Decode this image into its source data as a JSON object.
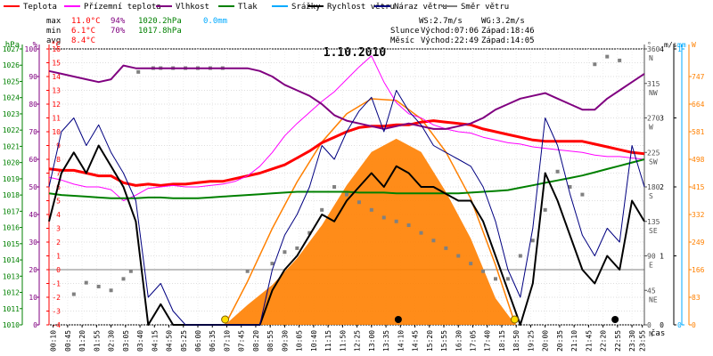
{
  "chart_data": {
    "type": "line",
    "title": "1.10.2010",
    "legend": {
      "placement": "top",
      "items": [
        {
          "name": "Teplota",
          "color": "#ff0000"
        },
        {
          "name": "Přízemní teplota",
          "color": "#ff00ff"
        },
        {
          "name": "Vlhkost",
          "color": "#800080"
        },
        {
          "name": "Tlak",
          "color": "#008000"
        },
        {
          "name": "Srážky",
          "color": "#00aaff"
        },
        {
          "name": "Rychlost větru",
          "color": "#000000"
        },
        {
          "name": "Náraz větru",
          "color": "#000080"
        },
        {
          "name": "Směr větru",
          "color": "#808080"
        }
      ]
    },
    "stats": {
      "max": {
        "label": "max",
        "temp": "11.0°C",
        "hum": "94%",
        "press": "1020.2hPa",
        "rain": "0.0mm"
      },
      "min": {
        "label": "min",
        "temp": "6.1°C",
        "hum": "70%",
        "press": "1017.8hPa"
      },
      "avg": {
        "label": "avg",
        "temp": "8.4°C"
      }
    },
    "info": {
      "ws": "WS:2.7m/s",
      "wg": "WG:3.2m/s",
      "slunce": "Slunce",
      "sun_rise": "Východ:07:06",
      "sun_set": "Západ:18:46",
      "mesic": "Měsíc",
      "moon_rise": "Východ:22:49",
      "moon_set": "Západ:14:05"
    },
    "axes": {
      "hpa": {
        "label": "hPa",
        "color": "#008000",
        "range": [
          1010,
          1027
        ],
        "ticks": [
          "1010",
          "1011",
          "1012",
          "1013",
          "1014",
          "1015",
          "1016",
          "1017",
          "1018",
          "1019",
          "1020",
          "1021",
          "1022",
          "1023",
          "1024",
          "1025",
          "1026",
          "1027"
        ]
      },
      "pct": {
        "label": "%",
        "color": "#800080",
        "range": [
          0,
          100
        ],
        "ticks": [
          "0",
          "10",
          "20",
          "30",
          "40",
          "50",
          "60",
          "70",
          "80",
          "90",
          "100"
        ]
      },
      "temp": {
        "label": "°C",
        "color": "#ff0000",
        "range": [
          -4,
          16
        ],
        "ticks": [
          "-4",
          "-3",
          "-2",
          "-1",
          "0",
          "1",
          "2",
          "3",
          "4",
          "5",
          "6",
          "7",
          "8",
          "9",
          "10",
          "11",
          "12",
          "13",
          "14",
          "15",
          "16"
        ]
      },
      "dir": {
        "label": "°",
        "color": "#505050",
        "range": [
          0,
          360
        ],
        "ticks": [
          {
            "v": 0,
            "t": "0",
            "d": "N"
          },
          {
            "v": 45,
            "t": "45",
            "d": "NE"
          },
          {
            "v": 90,
            "t": "90",
            "d": "E"
          },
          {
            "v": 135,
            "t": "135",
            "d": "SE"
          },
          {
            "v": 180,
            "t": "180",
            "d": "S"
          },
          {
            "v": 225,
            "t": "225",
            "d": "SW"
          },
          {
            "v": 270,
            "t": "270",
            "d": "W"
          },
          {
            "v": 315,
            "t": "315",
            "d": "NW"
          },
          {
            "v": 360,
            "t": "360",
            "d": "N"
          }
        ]
      },
      "ms": {
        "label": "m/s",
        "color": "#000000",
        "range": [
          0,
          4
        ],
        "ticks": [
          "0",
          "1",
          "2",
          "3",
          "4"
        ]
      },
      "mm": {
        "label": "mm",
        "color": "#00aaff",
        "range": [
          0,
          1
        ],
        "ticks": [
          "0",
          "1"
        ]
      },
      "w": {
        "label": "W",
        "color": "#ff8000",
        "range": [
          0,
          830
        ],
        "ticks": [
          "0",
          "83",
          "166",
          "249",
          "332",
          "415",
          "498",
          "581",
          "664",
          "747"
        ]
      },
      "time": {
        "label": "čas",
        "ticks": [
          "00:10",
          "00:45",
          "01:20",
          "01:55",
          "02:30",
          "03:05",
          "03:40",
          "04:15",
          "04:50",
          "05:25",
          "06:00",
          "06:35",
          "07:10",
          "07:45",
          "08:20",
          "08:55",
          "09:30",
          "10:05",
          "10:40",
          "11:15",
          "11:50",
          "12:25",
          "13:00",
          "13:35",
          "14:10",
          "14:45",
          "15:20",
          "15:55",
          "16:30",
          "17:05",
          "17:40",
          "18:15",
          "18:50",
          "19:25",
          "20:00",
          "20:35",
          "21:10",
          "21:45",
          "22:20",
          "22:55",
          "23:30",
          "23:55"
        ]
      }
    },
    "series": [
      {
        "name": "Teplota",
        "axis": "temp",
        "color": "#ff0000",
        "width": 3,
        "x": [
          0,
          0.5,
          1,
          1.5,
          2,
          2.5,
          3,
          3.5,
          4,
          4.5,
          5,
          5.5,
          6,
          6.5,
          7,
          7.5,
          8,
          8.5,
          9,
          9.5,
          10,
          10.5,
          11,
          11.5,
          12,
          12.5,
          13,
          13.5,
          14,
          14.5,
          15,
          15.5,
          16,
          16.5,
          17,
          17.5,
          18,
          18.5,
          19,
          19.5,
          20,
          20.5,
          21,
          21.5,
          22,
          22.5,
          23,
          23.5,
          24
        ],
        "y": [
          7.3,
          7.2,
          7.2,
          7.0,
          6.8,
          6.8,
          6.3,
          6.1,
          6.2,
          6.1,
          6.2,
          6.2,
          6.3,
          6.4,
          6.4,
          6.6,
          6.8,
          7.0,
          7.3,
          7.6,
          8.1,
          8.6,
          9.2,
          9.6,
          10.0,
          10.3,
          10.4,
          10.4,
          10.5,
          10.5,
          10.7,
          10.8,
          10.7,
          10.6,
          10.5,
          10.2,
          10.0,
          9.8,
          9.6,
          9.4,
          9.3,
          9.3,
          9.3,
          9.3,
          9.1,
          8.9,
          8.7,
          8.5,
          8.4
        ]
      },
      {
        "name": "Přízemní teplota",
        "axis": "temp",
        "color": "#ff00ff",
        "width": 1,
        "x": [
          0,
          0.5,
          1,
          1.5,
          2,
          2.5,
          3,
          3.5,
          4,
          4.5,
          5,
          5.5,
          6,
          6.5,
          7,
          7.5,
          8,
          8.5,
          9,
          9.5,
          10,
          10.5,
          11,
          11.5,
          12,
          12.5,
          13,
          13.5,
          14,
          14.5,
          15,
          15.5,
          16,
          16.5,
          17,
          17.5,
          18,
          18.5,
          19,
          19.5,
          20,
          20.5,
          21,
          21.5,
          22,
          22.5,
          23,
          23.5,
          24
        ],
        "y": [
          6.7,
          6.5,
          6.2,
          6.0,
          6.0,
          5.8,
          5.0,
          5.4,
          5.9,
          6.0,
          6.1,
          6.0,
          6.0,
          6.1,
          6.2,
          6.4,
          6.8,
          7.5,
          8.5,
          9.7,
          10.6,
          11.4,
          12.2,
          12.9,
          13.8,
          14.7,
          15.5,
          13.6,
          12.1,
          11.3,
          11.0,
          10.5,
          10.2,
          10.0,
          9.9,
          9.6,
          9.4,
          9.2,
          9.1,
          8.9,
          8.8,
          8.7,
          8.6,
          8.5,
          8.3,
          8.2,
          8.2,
          8.1,
          8.0
        ]
      },
      {
        "name": "Vlhkost",
        "axis": "pct",
        "color": "#800080",
        "width": 2,
        "x": [
          0,
          0.5,
          1,
          1.5,
          2,
          2.5,
          3,
          3.5,
          4,
          4.5,
          5,
          5.5,
          6,
          6.5,
          7,
          7.5,
          8,
          8.5,
          9,
          9.5,
          10,
          10.5,
          11,
          11.5,
          12,
          12.5,
          13,
          13.5,
          14,
          14.5,
          15,
          15.5,
          16,
          16.5,
          17,
          17.5,
          18,
          18.5,
          19,
          19.5,
          20,
          20.5,
          21,
          21.5,
          22,
          22.5,
          23,
          23.5,
          24
        ],
        "y": [
          92,
          91,
          90,
          89,
          88,
          89,
          94,
          93,
          93,
          93,
          93,
          93,
          93,
          93,
          93,
          93,
          93,
          92,
          90,
          87,
          85,
          83,
          80,
          76,
          74,
          73,
          72,
          71,
          72,
          73,
          72,
          71,
          71,
          72,
          73,
          75,
          78,
          80,
          82,
          83,
          84,
          82,
          80,
          78,
          78,
          82,
          85,
          88,
          91
        ]
      },
      {
        "name": "Tlak",
        "axis": "hpa",
        "color": "#008000",
        "width": 2,
        "x": [
          0,
          0.5,
          1,
          1.5,
          2,
          2.5,
          3,
          3.5,
          4,
          4.5,
          5,
          5.5,
          6,
          6.5,
          7,
          7.5,
          8,
          8.5,
          9,
          9.5,
          10,
          10.5,
          11,
          11.5,
          12,
          12.5,
          13,
          13.5,
          14,
          14.5,
          15,
          15.5,
          16,
          16.5,
          17,
          17.5,
          18,
          18.5,
          19,
          19.5,
          20,
          20.5,
          21,
          21.5,
          22,
          22.5,
          23,
          23.5,
          24
        ],
        "y": [
          1018.1,
          1018.0,
          1017.95,
          1017.9,
          1017.85,
          1017.8,
          1017.8,
          1017.8,
          1017.85,
          1017.85,
          1017.8,
          1017.8,
          1017.8,
          1017.85,
          1017.9,
          1017.95,
          1018.0,
          1018.05,
          1018.1,
          1018.15,
          1018.2,
          1018.2,
          1018.2,
          1018.2,
          1018.2,
          1018.15,
          1018.15,
          1018.15,
          1018.1,
          1018.1,
          1018.1,
          1018.1,
          1018.1,
          1018.1,
          1018.15,
          1018.2,
          1018.25,
          1018.3,
          1018.45,
          1018.6,
          1018.75,
          1018.9,
          1019.05,
          1019.2,
          1019.4,
          1019.6,
          1019.8,
          1020.0,
          1020.2
        ]
      },
      {
        "name": "Rychlost větru",
        "axis": "ms",
        "color": "#000000",
        "width": 2,
        "x": [
          0,
          0.5,
          1,
          1.5,
          2,
          2.5,
          3,
          3.5,
          4,
          4.5,
          5,
          5.5,
          6,
          6.5,
          7,
          7.5,
          8,
          8.5,
          9,
          9.5,
          10,
          10.5,
          11,
          11.5,
          12,
          12.5,
          13,
          13.5,
          14,
          14.5,
          15,
          15.5,
          16,
          16.5,
          17,
          17.5,
          18,
          18.5,
          19,
          19.5,
          20,
          20.5,
          21,
          21.5,
          22,
          22.5,
          23,
          23.5,
          24
        ],
        "y": [
          1.5,
          2.2,
          2.5,
          2.2,
          2.6,
          2.3,
          2.0,
          1.5,
          0,
          0.3,
          0,
          0,
          0,
          0,
          0,
          0,
          0,
          0,
          0.5,
          0.8,
          1.0,
          1.3,
          1.6,
          1.5,
          1.8,
          2.0,
          2.2,
          2.0,
          2.3,
          2.2,
          2.0,
          2.0,
          1.9,
          1.8,
          1.8,
          1.5,
          1.0,
          0.5,
          0,
          0.6,
          2.2,
          1.8,
          1.3,
          0.8,
          0.6,
          1.0,
          0.8,
          1.8,
          1.5
        ]
      },
      {
        "name": "Náraz větru",
        "axis": "ms",
        "color": "#000080",
        "width": 1,
        "x": [
          0,
          0.5,
          1,
          1.5,
          2,
          2.5,
          3,
          3.5,
          4,
          4.5,
          5,
          5.5,
          6,
          6.5,
          7,
          7.5,
          8,
          8.5,
          9,
          9.5,
          10,
          10.5,
          11,
          11.5,
          12,
          12.5,
          13,
          13.5,
          14,
          14.5,
          15,
          15.5,
          16,
          16.5,
          17,
          17.5,
          18,
          18.5,
          19,
          19.5,
          20,
          20.5,
          21,
          21.5,
          22,
          22.5,
          23,
          23.5,
          24
        ],
        "y": [
          2.0,
          2.8,
          3.0,
          2.6,
          2.9,
          2.5,
          2.2,
          1.8,
          0.4,
          0.6,
          0.2,
          0,
          0,
          0,
          0,
          0,
          0,
          0,
          0.8,
          1.3,
          1.6,
          2.0,
          2.6,
          2.4,
          2.8,
          3.1,
          3.3,
          2.8,
          3.4,
          3.1,
          2.9,
          2.6,
          2.5,
          2.4,
          2.3,
          2.0,
          1.5,
          0.8,
          0.4,
          1.4,
          3.0,
          2.6,
          1.9,
          1.3,
          1.0,
          1.4,
          1.2,
          2.6,
          2.0
        ]
      }
    ],
    "wind_direction": {
      "name": "Směr větru",
      "axis": "dir",
      "color": "#808080",
      "x": [
        1.0,
        1.5,
        2.0,
        2.5,
        3.0,
        3.3,
        3.6,
        4.2,
        4.5,
        5.0,
        5.5,
        6.0,
        6.5,
        7.0,
        8.0,
        9.0,
        9.5,
        10.0,
        10.5,
        11.0,
        11.5,
        12.0,
        12.5,
        13.0,
        13.5,
        14.0,
        14.5,
        15.0,
        15.5,
        16.0,
        16.5,
        17.0,
        17.5,
        18.0,
        18.5,
        19.0,
        19.5,
        20.0,
        20.5,
        21.0,
        21.5,
        22.0,
        22.5,
        23.0
      ],
      "y": [
        40,
        55,
        50,
        45,
        60,
        70,
        330,
        335,
        335,
        335,
        335,
        335,
        335,
        335,
        70,
        80,
        95,
        100,
        120,
        150,
        180,
        170,
        160,
        150,
        140,
        135,
        130,
        120,
        110,
        100,
        90,
        80,
        70,
        60,
        60,
        90,
        110,
        150,
        200,
        180,
        170,
        340,
        350,
        345
      ]
    },
    "solar_radiation": {
      "name": "solar",
      "axis": "w",
      "color": "#ff8000",
      "x": [
        7.1,
        8,
        9,
        10,
        11,
        12,
        13,
        14,
        15,
        16,
        17,
        18,
        18.8
      ],
      "y": [
        0,
        60,
        120,
        200,
        300,
        420,
        520,
        560,
        520,
        400,
        260,
        80,
        0
      ]
    },
    "sun_theory": {
      "axis": "w",
      "color": "#ff8000",
      "x": [
        7.1,
        8,
        9,
        10,
        11,
        12,
        13,
        14,
        15,
        16,
        17,
        18,
        18.8
      ],
      "y": [
        0,
        130,
        290,
        430,
        550,
        635,
        680,
        675,
        620,
        520,
        380,
        180,
        0
      ]
    },
    "day_hours": 24
  }
}
